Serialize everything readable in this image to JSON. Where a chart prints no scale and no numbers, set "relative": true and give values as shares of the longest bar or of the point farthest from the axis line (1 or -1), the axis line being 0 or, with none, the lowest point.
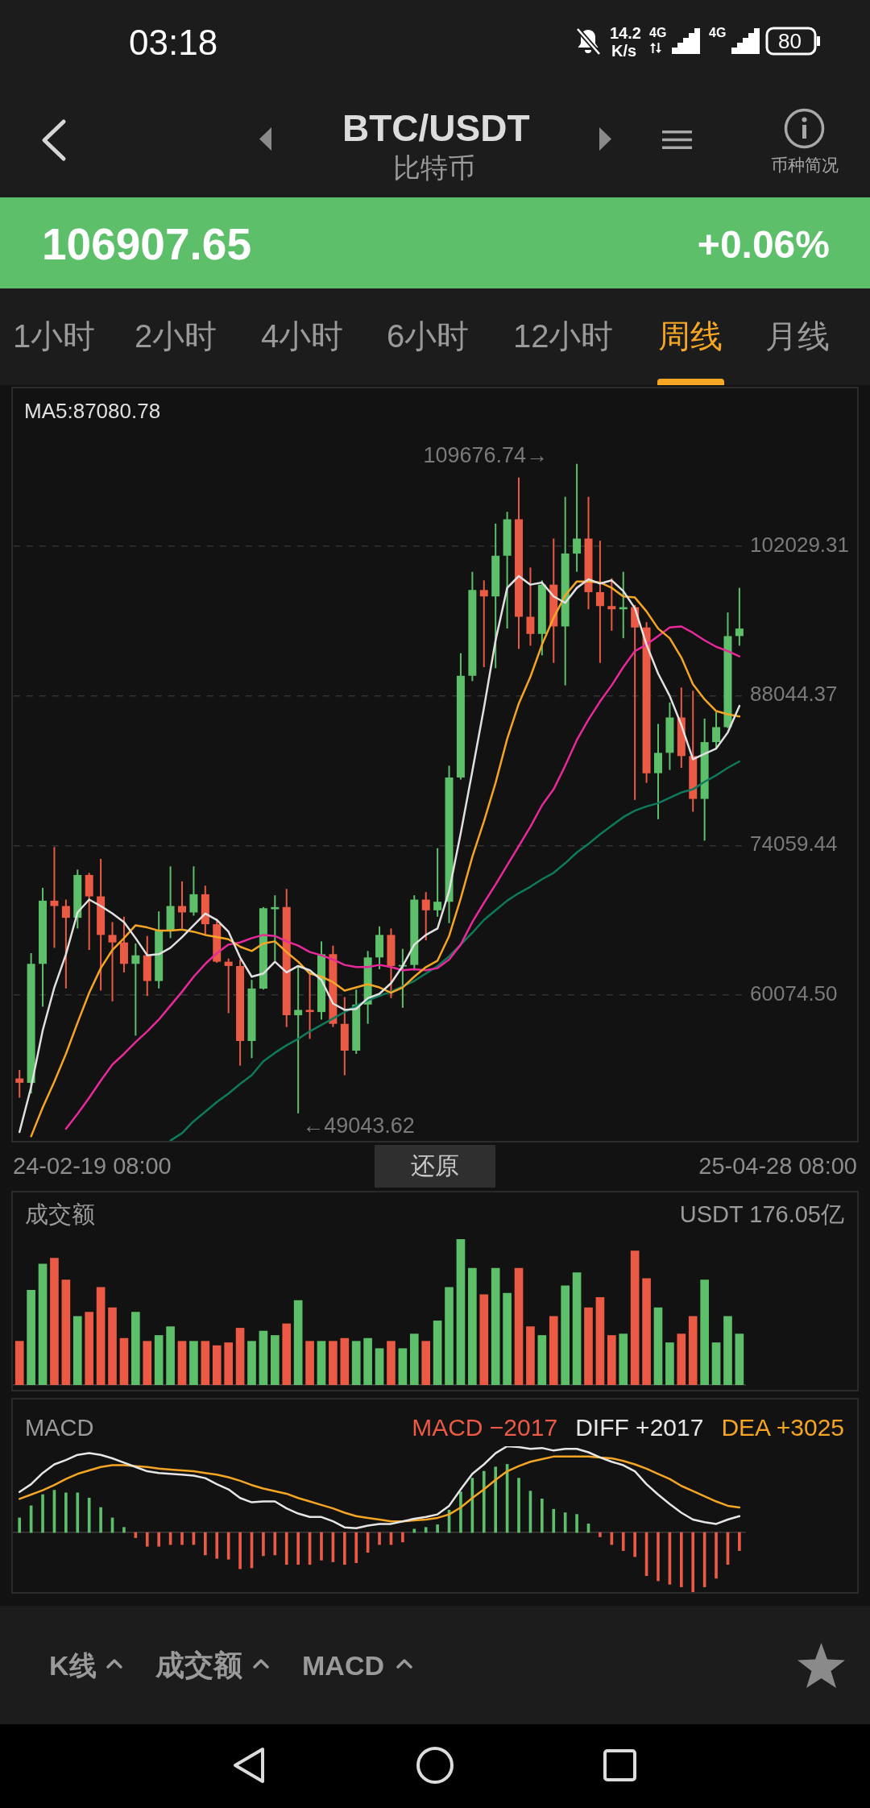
{
  "chart_data": [
    {
      "type": "candlestick",
      "title": "BTC/USDT",
      "subtitle": "比特币",
      "categories": [
        null,
        null,
        null,
        null,
        null,
        null,
        null,
        null,
        null,
        null,
        null,
        null,
        null,
        null,
        null,
        null,
        null,
        null,
        null,
        null,
        null,
        null,
        null,
        null,
        null,
        null,
        null,
        null,
        null,
        null,
        null,
        null,
        null,
        null,
        null,
        null,
        null,
        null,
        null,
        null,
        null,
        null,
        null,
        null,
        null,
        null,
        null,
        null,
        null,
        null,
        null,
        null,
        null,
        null,
        null,
        null,
        null,
        null,
        null,
        null,
        null,
        null,
        null
      ],
      "ohlc": [
        [
          52300,
          53100,
          50500,
          51900
        ],
        [
          51900,
          64000,
          50900,
          63000
        ],
        [
          63000,
          70100,
          59000,
          68900
        ],
        [
          68900,
          73900,
          64500,
          68400
        ],
        [
          68400,
          69000,
          60700,
          67300
        ],
        [
          67300,
          71800,
          66300,
          71300
        ],
        [
          71300,
          71500,
          64300,
          69300
        ],
        [
          69300,
          72800,
          60500,
          65700
        ],
        [
          65700,
          66900,
          59500,
          65000
        ],
        [
          65000,
          67400,
          62200,
          63000
        ],
        [
          63000,
          64900,
          56300,
          63800
        ],
        [
          63800,
          65600,
          60000,
          61400
        ],
        [
          61400,
          67900,
          60700,
          66100
        ],
        [
          66100,
          72100,
          65400,
          68400
        ],
        [
          68400,
          70700,
          66300,
          67800
        ],
        [
          67800,
          72100,
          67500,
          69500
        ],
        [
          69500,
          70300,
          65700,
          66700
        ],
        [
          66700,
          67200,
          63100,
          63200
        ],
        [
          63200,
          63500,
          58400,
          62800
        ],
        [
          62800,
          63400,
          53500,
          55800
        ],
        [
          55800,
          61500,
          54200,
          60700
        ],
        [
          60700,
          68300,
          60600,
          68200
        ],
        [
          68100,
          69400,
          63300,
          68300
        ],
        [
          68300,
          70000,
          57100,
          58200
        ],
        [
          58200,
          62800,
          49043.62,
          58700
        ],
        [
          58700,
          62200,
          56000,
          58500
        ],
        [
          58500,
          65100,
          57800,
          63900
        ],
        [
          63900,
          64700,
          57100,
          57400
        ],
        [
          57400,
          59900,
          52600,
          54900
        ],
        [
          54900,
          60600,
          54600,
          59200
        ],
        [
          59200,
          64200,
          57400,
          63600
        ],
        [
          63600,
          66500,
          62500,
          65700
        ],
        [
          65700,
          66300,
          59800,
          62800
        ],
        [
          62800,
          64400,
          58900,
          62900
        ],
        [
          62900,
          69400,
          62400,
          69000
        ],
        [
          69000,
          69700,
          65200,
          68000
        ],
        [
          68000,
          73800,
          67400,
          68800
        ],
        [
          68800,
          81500,
          66800,
          80400
        ],
        [
          80400,
          92000,
          80200,
          89900
        ],
        [
          89900,
          99600,
          89400,
          97900
        ],
        [
          97900,
          98800,
          90700,
          97300
        ],
        [
          97300,
          104100,
          90600,
          101100
        ],
        [
          101100,
          105200,
          94300,
          104500
        ],
        [
          104500,
          108400,
          92400,
          95400
        ],
        [
          95400,
          100000,
          92700,
          93800
        ],
        [
          93800,
          98800,
          91800,
          98400
        ],
        [
          98400,
          102700,
          91100,
          94500
        ],
        [
          94500,
          106600,
          89000,
          101300
        ],
        [
          101300,
          109676.74,
          99600,
          102700
        ],
        [
          102700,
          106600,
          96100,
          97700
        ],
        [
          97700,
          102500,
          91100,
          96400
        ],
        [
          96400,
          99000,
          94100,
          96100
        ],
        [
          96100,
          99600,
          93400,
          96300
        ],
        [
          96300,
          96500,
          78300,
          94400
        ],
        [
          94400,
          94900,
          79900,
          80800
        ],
        [
          80800,
          85400,
          76500,
          82700
        ],
        [
          82700,
          87400,
          81100,
          86000
        ],
        [
          86000,
          88800,
          81300,
          82400
        ],
        [
          82400,
          88500,
          77200,
          78400
        ],
        [
          78400,
          85900,
          74500,
          83700
        ],
        [
          83700,
          86500,
          83100,
          85100
        ],
        [
          85100,
          95800,
          85000,
          93600
        ],
        [
          93600,
          98100,
          92700,
          94300
        ]
      ],
      "colors": [
        "#ea5a45",
        "#5dbf6a",
        "#5dbf6a",
        "#ea5a45",
        "#ea5a45",
        "#5dbf6a",
        "#ea5a45",
        "#ea5a45",
        "#ea5a45",
        "#ea5a45",
        "#5dbf6a",
        "#ea5a45",
        "#5dbf6a",
        "#5dbf6a",
        "#ea5a45",
        "#5dbf6a",
        "#ea5a45",
        "#ea5a45",
        "#ea5a45",
        "#ea5a45",
        "#5dbf6a",
        "#5dbf6a",
        "#5dbf6a",
        "#ea5a45",
        "#5dbf6a",
        "#ea5a45",
        "#5dbf6a",
        "#ea5a45",
        "#ea5a45",
        "#5dbf6a",
        "#5dbf6a",
        "#5dbf6a",
        "#ea5a45",
        "#5dbf6a",
        "#5dbf6a",
        "#ea5a45",
        "#5dbf6a",
        "#5dbf6a",
        "#5dbf6a",
        "#5dbf6a",
        "#ea5a45",
        "#5dbf6a",
        "#5dbf6a",
        "#ea5a45",
        "#ea5a45",
        "#5dbf6a",
        "#ea5a45",
        "#5dbf6a",
        "#5dbf6a",
        "#ea5a45",
        "#ea5a45",
        "#ea5a45",
        "#5dbf6a",
        "#ea5a45",
        "#ea5a45",
        "#5dbf6a",
        "#5dbf6a",
        "#ea5a45",
        "#ea5a45",
        "#5dbf6a",
        "#5dbf6a",
        "#5dbf6a",
        "#5dbf6a"
      ],
      "series": [
        {
          "type": "line",
          "name": "MA5:87080.78",
          "color": "#e0e0e0",
          "values": [
            47300,
            51500,
            56800,
            60800,
            63900,
            67800,
            69000,
            68400,
            67700,
            66900,
            65400,
            63800,
            63900,
            64500,
            65500,
            66600,
            67700,
            67100,
            66000,
            63600,
            61800,
            62100,
            63200,
            62200,
            62800,
            62400,
            61500,
            59300,
            58700,
            58800,
            59800,
            60200,
            61200,
            62800,
            64800,
            65700,
            66300,
            69800,
            75200,
            81000,
            86900,
            93200,
            98100,
            99200,
            98400,
            98600,
            97300,
            96700,
            98100,
            98900,
            98500,
            98800,
            97800,
            96200,
            92800,
            90100,
            88000,
            85300,
            82100,
            82600,
            83100,
            84600,
            87080.78
          ]
        },
        {
          "type": "line",
          "color": "#f5a524",
          "values": [
            null,
            46900,
            49600,
            52000,
            54600,
            57500,
            60300,
            62600,
            64300,
            65400,
            66600,
            66400,
            66100,
            66100,
            66200,
            66000,
            65700,
            65500,
            65300,
            64600,
            64200,
            64900,
            65100,
            64100,
            63200,
            62100,
            61800,
            61300,
            60500,
            60800,
            61100,
            60800,
            60300,
            60800,
            61800,
            62700,
            63300,
            65600,
            69100,
            73000,
            76300,
            79900,
            84000,
            87300,
            89800,
            92800,
            95300,
            97400,
            98700,
            98700,
            98600,
            98100,
            97300,
            97200,
            95900,
            94300,
            93400,
            91600,
            89100,
            87700,
            86600,
            86300,
            86100
          ]
        },
        {
          "type": "line",
          "color": "#e8299a",
          "values": [
            null,
            null,
            null,
            null,
            47600,
            49000,
            50500,
            52100,
            53600,
            54600,
            55700,
            56700,
            57800,
            59100,
            60400,
            61800,
            63000,
            64000,
            64800,
            65000,
            65400,
            65700,
            65600,
            65100,
            64700,
            64100,
            63800,
            63400,
            62900,
            62700,
            62700,
            62900,
            62700,
            62400,
            62500,
            62400,
            62600,
            63400,
            64800,
            66900,
            68700,
            70400,
            72200,
            74000,
            75800,
            77800,
            79300,
            81500,
            83900,
            85800,
            87500,
            89000,
            90700,
            92200,
            92800,
            93600,
            94400,
            94500,
            93900,
            93200,
            92600,
            92200,
            91700
          ]
        },
        {
          "type": "line",
          "color": "#0e7a5c",
          "values": [
            null,
            null,
            null,
            null,
            null,
            null,
            null,
            null,
            null,
            null,
            null,
            null,
            null,
            46500,
            47200,
            48300,
            49200,
            50100,
            50900,
            51800,
            52600,
            53900,
            54700,
            55400,
            56000,
            56700,
            57300,
            57900,
            58500,
            59100,
            59600,
            60000,
            60400,
            60900,
            61400,
            62100,
            62800,
            63700,
            64800,
            65900,
            67100,
            68000,
            68900,
            69600,
            70200,
            70900,
            71500,
            72400,
            73400,
            74200,
            75100,
            75900,
            76700,
            77300,
            77700,
            78000,
            78500,
            79000,
            79300,
            80000,
            80600,
            81300,
            81900
          ]
        }
      ],
      "ylim": [
        46400,
        116800
      ],
      "yticks": [
        {
          "value": 60074.5,
          "label": "60074.50"
        },
        74059.44,
        88044.37,
        102029.31
      ],
      "grid": "y",
      "tick_labels": "y",
      "annotations": [
        "109676.74→",
        "←49043.62",
        "24-02-19 08:00",
        "25-04-28 08:00",
        "还原",
        "106907.65",
        "+0.06%",
        "币种简况",
        "1小时",
        "2小时",
        "4小时",
        "6小时",
        "12小时",
        "周线",
        "月线",
        "K线",
        "成交额",
        "MACD",
        "03:18",
        "14.2",
        "K/s",
        "4G",
        "4G",
        "80"
      ]
    },
    {
      "type": "bar",
      "title": "成交额",
      "relative": true,
      "tick_labels": false,
      "categories": [
        null,
        null,
        null,
        null,
        null,
        null,
        null,
        null,
        null,
        null,
        null,
        null,
        null,
        null,
        null,
        null,
        null,
        null,
        null,
        null,
        null,
        null,
        null,
        null,
        null,
        null,
        null,
        null,
        null,
        null,
        null,
        null,
        null,
        null,
        null,
        null,
        null,
        null,
        null,
        null,
        null,
        null,
        null,
        null,
        null,
        null,
        null,
        null,
        null,
        null,
        null,
        null,
        null,
        null,
        null,
        null,
        null,
        null,
        null,
        null,
        null,
        null,
        null
      ],
      "values": [
        0.3,
        0.65,
        0.83,
        0.87,
        0.72,
        0.47,
        0.5,
        0.67,
        0.53,
        0.32,
        0.5,
        0.3,
        0.34,
        0.4,
        0.3,
        0.3,
        0.3,
        0.27,
        0.29,
        0.39,
        0.3,
        0.37,
        0.34,
        0.42,
        0.58,
        0.3,
        0.3,
        0.3,
        0.32,
        0.3,
        0.32,
        0.25,
        0.3,
        0.25,
        0.35,
        0.3,
        0.44,
        0.67,
        1,
        0.8,
        0.62,
        0.8,
        0.63,
        0.8,
        0.4,
        0.34,
        0.47,
        0.68,
        0.77,
        0.53,
        0.6,
        0.34,
        0.35,
        0.92,
        0.73,
        0.53,
        0.29,
        0.35,
        0.47,
        0.72,
        0.29,
        0.47,
        0.35
      ],
      "colors": [
        "#ea5a45",
        "#5dbf6a",
        "#5dbf6a",
        "#ea5a45",
        "#ea5a45",
        "#5dbf6a",
        "#ea5a45",
        "#ea5a45",
        "#ea5a45",
        "#ea5a45",
        "#5dbf6a",
        "#ea5a45",
        "#5dbf6a",
        "#5dbf6a",
        "#ea5a45",
        "#5dbf6a",
        "#ea5a45",
        "#ea5a45",
        "#ea5a45",
        "#ea5a45",
        "#5dbf6a",
        "#5dbf6a",
        "#5dbf6a",
        "#ea5a45",
        "#5dbf6a",
        "#ea5a45",
        "#5dbf6a",
        "#ea5a45",
        "#ea5a45",
        "#5dbf6a",
        "#5dbf6a",
        "#5dbf6a",
        "#ea5a45",
        "#5dbf6a",
        "#5dbf6a",
        "#ea5a45",
        "#5dbf6a",
        "#5dbf6a",
        "#5dbf6a",
        "#5dbf6a",
        "#ea5a45",
        "#5dbf6a",
        "#5dbf6a",
        "#ea5a45",
        "#ea5a45",
        "#5dbf6a",
        "#ea5a45",
        "#5dbf6a",
        "#5dbf6a",
        "#ea5a45",
        "#ea5a45",
        "#ea5a45",
        "#5dbf6a",
        "#ea5a45",
        "#ea5a45",
        "#5dbf6a",
        "#5dbf6a",
        "#ea5a45",
        "#ea5a45",
        "#5dbf6a",
        "#5dbf6a",
        "#5dbf6a",
        "#5dbf6a"
      ],
      "annotations": [
        "USDT 176.05亿"
      ]
    },
    {
      "type": "line",
      "title": "MACD",
      "relative": true,
      "tick_labels": false,
      "categories": [
        null,
        null,
        null,
        null,
        null,
        null,
        null,
        null,
        null,
        null,
        null,
        null,
        null,
        null,
        null,
        null,
        null,
        null,
        null,
        null,
        null,
        null,
        null,
        null,
        null,
        null,
        null,
        null,
        null,
        null,
        null,
        null,
        null,
        null,
        null,
        null,
        null,
        null,
        null,
        null,
        null,
        null,
        null,
        null,
        null,
        null,
        null,
        null,
        null,
        null,
        null,
        null,
        null,
        null,
        null,
        null,
        null,
        null,
        null,
        null,
        null,
        null,
        null
      ],
      "series": [
        {
          "type": "bar",
          "name": "MACD −2017",
          "color": "#ea5a45",
          "values": [
            0.17,
            0.31,
            0.44,
            0.49,
            0.46,
            0.46,
            0.4,
            0.29,
            0.17,
            0.06,
            -0.06,
            -0.16,
            -0.16,
            -0.14,
            -0.14,
            -0.14,
            -0.26,
            -0.3,
            -0.31,
            -0.42,
            -0.41,
            -0.27,
            -0.26,
            -0.37,
            -0.37,
            -0.37,
            -0.32,
            -0.34,
            -0.37,
            -0.35,
            -0.23,
            -0.14,
            -0.14,
            -0.11,
            0.04,
            0.06,
            0.09,
            0.26,
            0.47,
            0.63,
            0.71,
            0.76,
            0.79,
            0.63,
            0.48,
            0.39,
            0.27,
            0.23,
            0.21,
            0.1,
            -0.05,
            -0.14,
            -0.21,
            -0.28,
            -0.5,
            -0.56,
            -0.6,
            -0.63,
            -0.69,
            -0.63,
            -0.53,
            -0.37,
            -0.21
          ],
          "colors": [
            "#5dbf6a",
            "#5dbf6a",
            "#5dbf6a",
            "#5dbf6a",
            "#5dbf6a",
            "#5dbf6a",
            "#5dbf6a",
            "#5dbf6a",
            "#5dbf6a",
            "#5dbf6a",
            "#ea5a45",
            "#ea5a45",
            "#ea5a45",
            "#ea5a45",
            "#ea5a45",
            "#ea5a45",
            "#ea5a45",
            "#ea5a45",
            "#ea5a45",
            "#ea5a45",
            "#ea5a45",
            "#ea5a45",
            "#ea5a45",
            "#ea5a45",
            "#ea5a45",
            "#ea5a45",
            "#ea5a45",
            "#ea5a45",
            "#ea5a45",
            "#ea5a45",
            "#ea5a45",
            "#ea5a45",
            "#ea5a45",
            "#ea5a45",
            "#5dbf6a",
            "#5dbf6a",
            "#5dbf6a",
            "#5dbf6a",
            "#5dbf6a",
            "#5dbf6a",
            "#5dbf6a",
            "#5dbf6a",
            "#5dbf6a",
            "#5dbf6a",
            "#5dbf6a",
            "#5dbf6a",
            "#5dbf6a",
            "#5dbf6a",
            "#5dbf6a",
            "#5dbf6a",
            "#ea5a45",
            "#ea5a45",
            "#ea5a45",
            "#ea5a45",
            "#ea5a45",
            "#ea5a45",
            "#ea5a45",
            "#ea5a45",
            "#ea5a45",
            "#ea5a45",
            "#ea5a45",
            "#ea5a45",
            "#ea5a45"
          ]
        },
        {
          "name": "DIFF +2017",
          "color": "#e6e6e6",
          "values": [
            0.47,
            0.56,
            0.69,
            0.79,
            0.84,
            0.9,
            0.92,
            0.9,
            0.86,
            0.81,
            0.76,
            0.71,
            0.69,
            0.68,
            0.67,
            0.66,
            0.63,
            0.56,
            0.5,
            0.4,
            0.35,
            0.36,
            0.36,
            0.28,
            0.22,
            0.18,
            0.18,
            0.13,
            0.06,
            0.05,
            0.08,
            0.1,
            0.1,
            0.13,
            0.16,
            0.18,
            0.21,
            0.31,
            0.5,
            0.68,
            0.79,
            0.92,
            1,
            0.99,
            0.97,
            0.98,
            0.95,
            0.97,
            0.97,
            0.93,
            0.87,
            0.82,
            0.78,
            0.71,
            0.56,
            0.44,
            0.33,
            0.23,
            0.15,
            0.12,
            0.1,
            0.15,
            0.19
          ]
        },
        {
          "name": "DEA +3025",
          "color": "#f5a524",
          "values": [
            0.39,
            0.44,
            0.49,
            0.55,
            0.62,
            0.68,
            0.72,
            0.76,
            0.78,
            0.78,
            0.77,
            0.76,
            0.74,
            0.73,
            0.72,
            0.71,
            0.69,
            0.67,
            0.64,
            0.6,
            0.55,
            0.51,
            0.48,
            0.45,
            0.4,
            0.36,
            0.32,
            0.28,
            0.23,
            0.19,
            0.17,
            0.15,
            0.13,
            0.13,
            0.14,
            0.15,
            0.17,
            0.21,
            0.29,
            0.4,
            0.5,
            0.61,
            0.71,
            0.77,
            0.82,
            0.85,
            0.88,
            0.88,
            0.88,
            0.88,
            0.87,
            0.86,
            0.83,
            0.79,
            0.74,
            0.68,
            0.62,
            0.54,
            0.48,
            0.42,
            0.36,
            0.31,
            0.29
          ]
        }
      ]
    }
  ]
}
